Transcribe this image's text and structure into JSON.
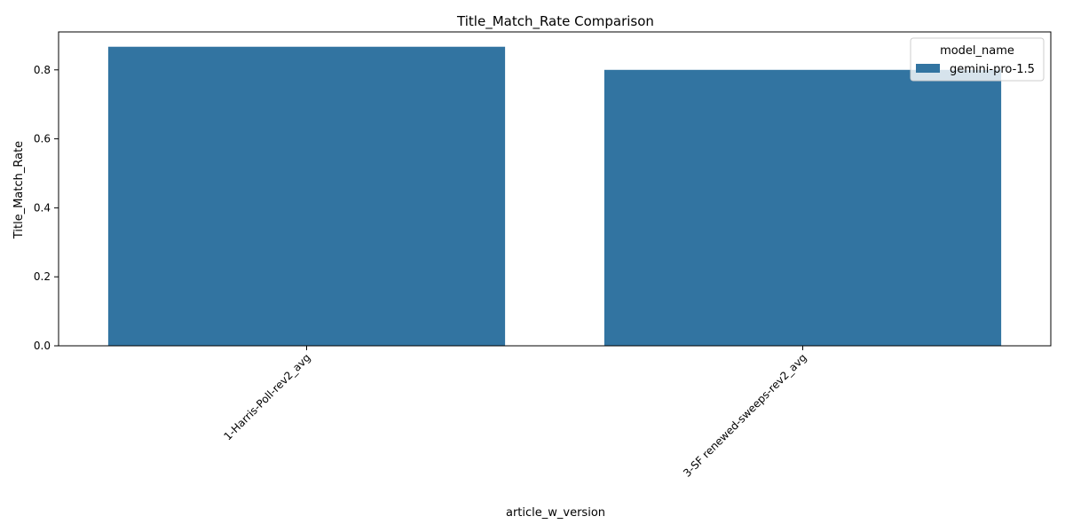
{
  "chart_data": {
    "type": "bar",
    "title": "Title_Match_Rate Comparison",
    "xlabel": "article_w_version",
    "ylabel": "Title_Match_Rate",
    "categories": [
      "1-Harris-Poll-rev2_avg",
      "3-SF renewed-sweeps-rev2_avg"
    ],
    "series": [
      {
        "name": "gemini-pro-1.5",
        "values": [
          0.867,
          0.8
        ],
        "color": "#3274a1"
      }
    ],
    "ylim": [
      0,
      0.91
    ],
    "yticks": [
      0.0,
      0.2,
      0.4,
      0.6,
      0.8
    ],
    "ytick_labels": [
      "0.0",
      "0.2",
      "0.4",
      "0.6",
      "0.8"
    ],
    "grid": false,
    "legend": {
      "title": "model_name",
      "placement": "top-right"
    },
    "xtick_rotation": 45
  }
}
